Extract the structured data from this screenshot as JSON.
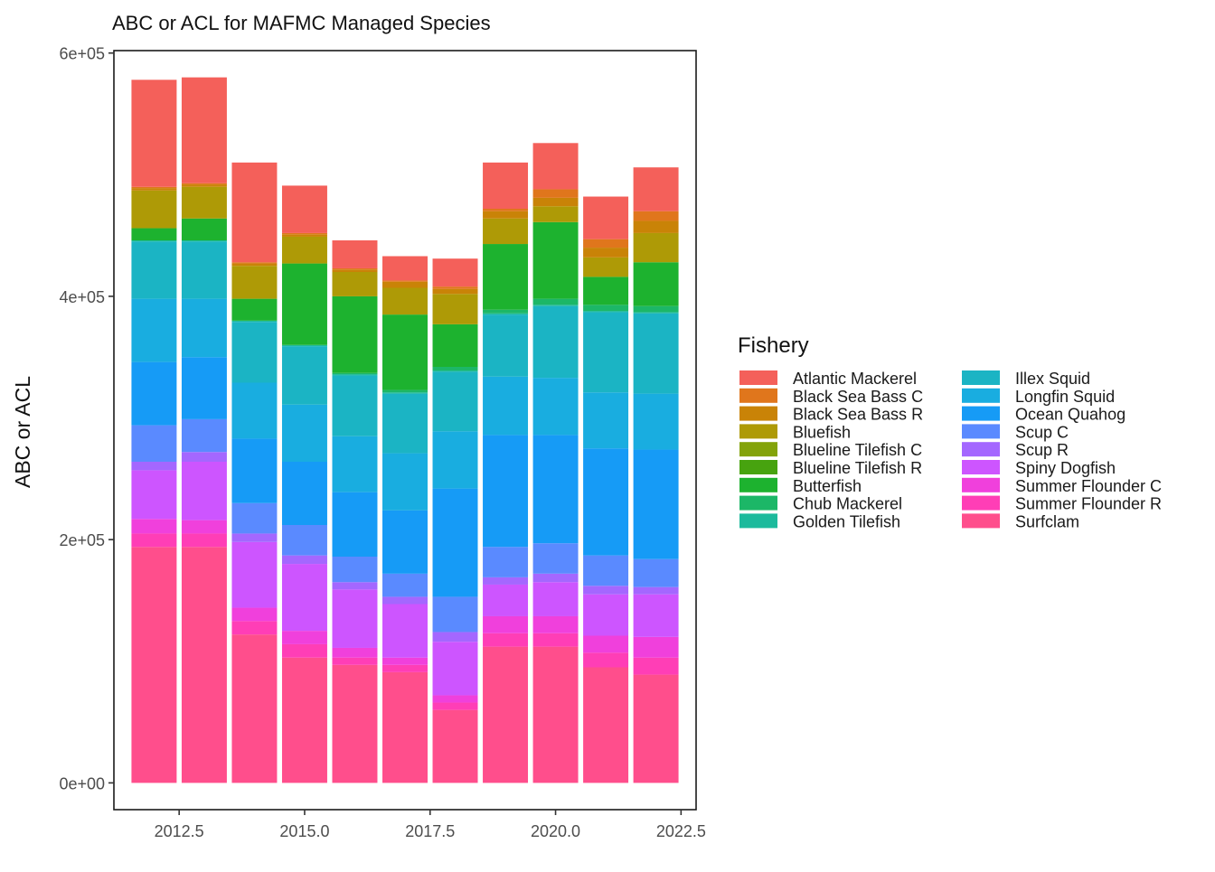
{
  "chart_data": {
    "type": "bar",
    "stacked": true,
    "title": "ABC or ACL for MAFMC Managed Species",
    "xlabel": "",
    "ylabel": "ABC or ACL",
    "x": [
      2012,
      2013,
      2014,
      2015,
      2016,
      2017,
      2018,
      2019,
      2020,
      2021,
      2022
    ],
    "xlim": [
      2011.2,
      2022.8
    ],
    "ylim": [
      -22000,
      602000
    ],
    "x_ticks": [
      2012.5,
      2015.0,
      2017.5,
      2020.0,
      2022.5
    ],
    "x_tick_labels": [
      "2012.5",
      "2015.0",
      "2017.5",
      "2020.0",
      "2022.5"
    ],
    "y_ticks": [
      0,
      200000,
      400000,
      600000
    ],
    "y_tick_labels": [
      "0e+00",
      "2e+05",
      "4e+05",
      "6e+05"
    ],
    "grid": false,
    "legend": {
      "title": "Fishery",
      "placement": "right",
      "columns": 2
    },
    "series": [
      {
        "name": "Surfclam",
        "color": "#FF4E8C",
        "values": [
          194000,
          194000,
          122000,
          103000,
          97000,
          91000,
          60000,
          112000,
          112000,
          95000,
          89000
        ]
      },
      {
        "name": "Summer Flounder R",
        "color": "#FF3EB6",
        "values": [
          11000,
          11000,
          11000,
          11000,
          6000,
          6000,
          6000,
          11000,
          11000,
          12000,
          14000
        ]
      },
      {
        "name": "Summer Flounder C",
        "color": "#F040DC",
        "values": [
          12000,
          11000,
          11000,
          11000,
          8000,
          6000,
          6000,
          14000,
          14000,
          14000,
          17000
        ]
      },
      {
        "name": "Spiny Dogfish",
        "color": "#CD55FF",
        "values": [
          40000,
          48000,
          54000,
          55000,
          48000,
          44000,
          44000,
          26000,
          28000,
          34000,
          35000
        ]
      },
      {
        "name": "Scup R",
        "color": "#A467FF",
        "values": [
          7000,
          8000,
          7000,
          7000,
          6000,
          6000,
          8000,
          6000,
          7000,
          7000,
          6000
        ]
      },
      {
        "name": "Scup C",
        "color": "#5A8AFF",
        "values": [
          30000,
          27000,
          25000,
          25000,
          21000,
          19000,
          29000,
          25000,
          25000,
          25000,
          23000
        ]
      },
      {
        "name": "Ocean Quahog",
        "color": "#169BF6",
        "values": [
          52000,
          51000,
          53000,
          52000,
          53000,
          52000,
          89000,
          92000,
          89000,
          88000,
          90000
        ]
      },
      {
        "name": "Longfin Squid",
        "color": "#19ADE0",
        "values": [
          52000,
          48000,
          46000,
          47000,
          46000,
          47000,
          47000,
          48000,
          47000,
          46000,
          46000
        ]
      },
      {
        "name": "Illex Squid",
        "color": "#1BB4C4",
        "values": [
          47000,
          47000,
          50000,
          48000,
          50000,
          49000,
          49000,
          51000,
          59000,
          66000,
          66000
        ]
      },
      {
        "name": "Golden Tilefish",
        "color": "#1CBA9C",
        "values": [
          1000,
          1000,
          1000,
          1000,
          1000,
          1000,
          1000,
          1000,
          1000,
          1000,
          1000
        ]
      },
      {
        "name": "Chub Mackerel",
        "color": "#1CB767",
        "values": [
          0,
          0,
          0,
          0,
          1000,
          2000,
          3000,
          3000,
          5000,
          5000,
          5000
        ]
      },
      {
        "name": "Butterfish",
        "color": "#1DB22F",
        "values": [
          10000,
          18000,
          18000,
          67000,
          63000,
          62000,
          35000,
          54000,
          63000,
          23000,
          36000
        ]
      },
      {
        "name": "Blueline Tilefish R",
        "color": "#47A30F",
        "values": [
          0,
          0,
          0,
          0,
          0,
          0,
          0,
          0,
          0,
          0,
          0
        ]
      },
      {
        "name": "Blueline Tilefish C",
        "color": "#83A30A",
        "values": [
          0,
          0,
          0,
          0,
          0,
          0,
          0,
          0,
          0,
          0,
          0
        ]
      },
      {
        "name": "Bluefish",
        "color": "#AE9A06",
        "values": [
          31000,
          26000,
          27000,
          22000,
          20000,
          22000,
          25000,
          21000,
          13000,
          16000,
          24000
        ]
      },
      {
        "name": "Black Sea Bass R",
        "color": "#C98307",
        "values": [
          2000,
          2000,
          2000,
          2000,
          2000,
          5000,
          4000,
          6000,
          7000,
          8000,
          10000
        ]
      },
      {
        "name": "Black Sea Bass C",
        "color": "#E0761C",
        "values": [
          1000,
          1000,
          1000,
          1000,
          1000,
          1000,
          2000,
          2000,
          7000,
          7000,
          8000
        ]
      },
      {
        "name": "Atlantic Mackerel",
        "color": "#F4605A",
        "values": [
          88000,
          87000,
          82000,
          39000,
          23000,
          20000,
          23000,
          38000,
          38000,
          35000,
          36000
        ]
      }
    ]
  }
}
